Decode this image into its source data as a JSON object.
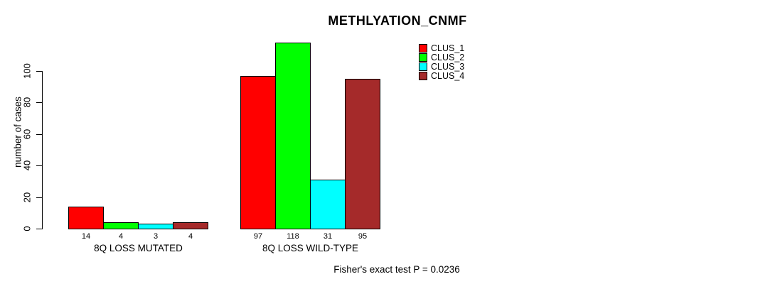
{
  "chart_data": {
    "type": "bar",
    "title": "METHLYATION_CNMF",
    "ylabel": "number of cases",
    "xlabel": "",
    "categories": [
      "8Q LOSS MUTATED",
      "8Q LOSS WILD-TYPE"
    ],
    "series": [
      {
        "name": "CLUS_1",
        "color": "#ff0000",
        "values": [
          14,
          97
        ]
      },
      {
        "name": "CLUS_2",
        "color": "#00ff00",
        "values": [
          4,
          118
        ]
      },
      {
        "name": "CLUS_3",
        "color": "#00ffff",
        "values": [
          3,
          31
        ]
      },
      {
        "name": "CLUS_4",
        "color": "#a52a2a",
        "values": [
          4,
          95
        ]
      }
    ],
    "yticks": [
      0,
      20,
      40,
      60,
      80,
      100
    ],
    "ylim": [
      0,
      118
    ],
    "bar_value_labels": true,
    "grid": false,
    "legend_position": "top-right",
    "annotation": "Fisher's exact test P = 0.0236"
  }
}
